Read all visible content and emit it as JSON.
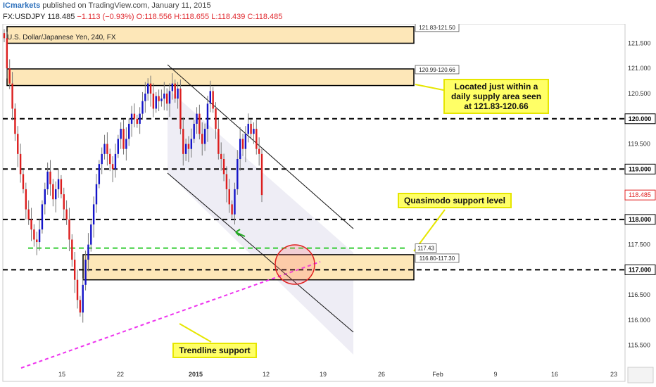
{
  "header": {
    "user": "ICmarkets",
    "published": " published on TradingView.com, January 11, 2015",
    "symbol": "FX:USDJPY",
    "last": "118.485",
    "change": "−1.113 (−0.93%)",
    "open": "O:118.556",
    "high": "H:118.655",
    "low": "L:118.439",
    "close": "C:118.485"
  },
  "chart_title": "U.S. Dollar/Japanese Yen, 240, FX",
  "colors": {
    "zone_fill": "#fde7b8",
    "zone_border": "#000000",
    "up_candle": "#1414c8",
    "down_candle": "#dc1e1e",
    "dashed_level": "#000000",
    "quasimodo": "#33cc33",
    "trendline": "#ee33ee",
    "channel_fill": "#ecebf4",
    "callout_bg": "#ffff66"
  },
  "annotations": {
    "supply_note": "Located just within a daily supply area seen at 121.83-120.66",
    "quasimodo_note": "Quasimodo support level",
    "trendline_note": "Trendline support"
  },
  "chart_data": {
    "type": "candlestick",
    "symbol": "USDJPY",
    "timeframe": "240",
    "ylim": [
      115.3,
      121.8
    ],
    "y_ticks": [
      "121.500",
      "121.000",
      "120.500",
      "120.000",
      "119.500",
      "119.000",
      "118.500",
      "118.000",
      "117.500",
      "117.000",
      "116.500",
      "116.000",
      "115.500"
    ],
    "x_ticks": [
      "15",
      "22",
      "2015",
      "12",
      "19",
      "26",
      "Feb",
      "9",
      "16",
      "23"
    ],
    "current_price": "118.485",
    "zones": [
      {
        "label": "121.83-121.50",
        "low": 121.5,
        "high": 121.83
      },
      {
        "label": "120.99-120.66",
        "low": 120.66,
        "high": 120.99
      },
      {
        "label": "116.80-117.30",
        "low": 116.8,
        "high": 117.3
      }
    ],
    "levels": [
      {
        "value": 120.0,
        "label": "120.000"
      },
      {
        "value": 119.0,
        "label": "119.000"
      },
      {
        "value": 118.0,
        "label": "118.000"
      },
      {
        "value": 117.0,
        "label": "117.000"
      }
    ],
    "quasimodo_level": {
      "value": 117.43,
      "label": "117.43"
    },
    "closes": [
      121.6,
      121.0,
      120.7,
      120.2,
      119.7,
      119.3,
      118.9,
      118.6,
      118.2,
      118.0,
      117.8,
      117.6,
      117.55,
      117.8,
      118.3,
      118.6,
      118.95,
      118.7,
      118.4,
      118.6,
      118.8,
      118.5,
      118.2,
      118.0,
      117.6,
      117.2,
      116.8,
      116.4,
      116.15,
      116.7,
      117.2,
      117.5,
      117.9,
      118.3,
      118.7,
      119.1,
      119.3,
      119.5,
      119.3,
      119.1,
      119.0,
      119.3,
      119.6,
      119.8,
      119.4,
      119.6,
      119.9,
      120.1,
      120.0,
      119.9,
      120.1,
      120.35,
      120.5,
      120.7,
      120.5,
      120.2,
      120.45,
      120.35,
      120.4,
      120.5,
      120.3,
      120.55,
      120.7,
      120.4,
      120.6,
      119.8,
      119.3,
      119.5,
      119.4,
      119.6,
      119.9,
      120.1,
      119.7,
      119.5,
      119.8,
      120.3,
      120.55,
      120.2,
      119.8,
      119.3,
      119.2,
      118.9,
      118.6,
      118.3,
      118.1,
      118.6,
      119.2,
      119.6,
      119.4,
      119.7,
      119.9,
      119.7,
      119.8,
      119.4,
      119.3,
      118.485
    ]
  }
}
